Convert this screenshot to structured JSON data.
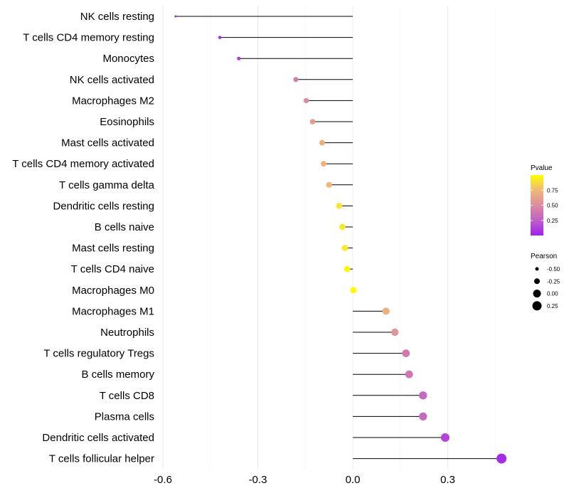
{
  "chart_data": {
    "type": "lollipop",
    "title": "",
    "xlabel": "",
    "ylabel": "",
    "xlim": [
      -0.6,
      0.47
    ],
    "x_ticks": [
      -0.6,
      -0.3,
      0.0,
      0.3
    ],
    "x_tick_labels": [
      "-0.6",
      "-0.3",
      "0.0",
      "0.3"
    ],
    "grid": true,
    "legend_position": "right",
    "categories": [
      "NK cells resting",
      "T cells CD4 memory resting",
      "Monocytes",
      "NK cells activated",
      "Macrophages M2",
      "Eosinophils",
      "Mast cells activated",
      "T cells CD4 memory activated",
      "T cells gamma delta",
      "Dendritic cells resting",
      "B cells naive",
      "Mast cells resting",
      "T cells CD4 naive",
      "Macrophages M0",
      "Macrophages M1",
      "Neutrophils",
      "T cells regulatory  Tregs",
      "B cells memory",
      "T cells CD8",
      "Plasma cells",
      "Dendritic cells activated",
      "T cells follicular helper"
    ],
    "pearson": [
      -0.56,
      -0.42,
      -0.36,
      -0.18,
      -0.147,
      -0.127,
      -0.097,
      -0.092,
      -0.075,
      -0.043,
      -0.033,
      -0.025,
      -0.018,
      0.002,
      0.105,
      0.133,
      0.168,
      0.178,
      0.222,
      0.222,
      0.292,
      0.47
    ],
    "pvalue": [
      0.02,
      0.05,
      0.1,
      0.42,
      0.5,
      0.6,
      0.7,
      0.72,
      0.75,
      0.9,
      0.92,
      0.93,
      0.97,
      0.98,
      0.7,
      0.55,
      0.4,
      0.38,
      0.3,
      0.3,
      0.15,
      0.05
    ],
    "size_legend": {
      "title": "Pearson",
      "values": [
        -0.5,
        -0.25,
        0.0,
        0.25
      ],
      "labels": [
        "-0.50",
        "-0.25",
        "0.00",
        "0.25"
      ]
    },
    "color_legend": {
      "title": "Pvalue",
      "range": [
        0.0,
        1.0
      ],
      "tick_values": [
        0.25,
        0.5,
        0.75
      ],
      "tick_labels": [
        "0.25",
        "0.50",
        "0.75"
      ],
      "low_color": "#a020f0",
      "high_color": "#ffff00"
    }
  }
}
